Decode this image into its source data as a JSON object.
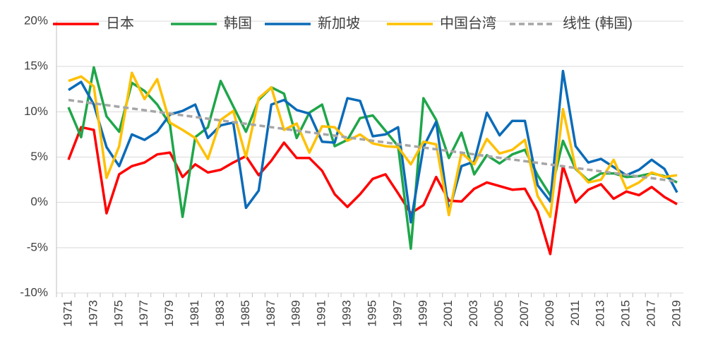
{
  "chart_data": {
    "type": "line",
    "categories": [
      "1971",
      null,
      "1973",
      null,
      "1975",
      null,
      "1977",
      null,
      "1979",
      null,
      "1981",
      null,
      "1983",
      null,
      "1985",
      null,
      "1987",
      null,
      "1989",
      null,
      "1991",
      null,
      "1993",
      null,
      "1995",
      null,
      "1997",
      null,
      "1999",
      null,
      "2001",
      null,
      "2003",
      null,
      "2005",
      null,
      "2007",
      null,
      "2009",
      null,
      "2011",
      null,
      "2013",
      null,
      "2015",
      null,
      "2017",
      null,
      "2019"
    ],
    "series": [
      {
        "name": "日本",
        "color": "#ff0000",
        "values": [
          4.7,
          8.3,
          8.0,
          -1.2,
          3.1,
          4.0,
          4.4,
          5.3,
          5.5,
          2.8,
          4.2,
          3.3,
          3.6,
          4.4,
          5.1,
          3.0,
          4.6,
          6.6,
          4.9,
          4.9,
          3.5,
          0.9,
          -0.5,
          0.9,
          2.6,
          3.1,
          1.0,
          -1.2,
          -0.3,
          2.8,
          0.2,
          0.1,
          1.5,
          2.2,
          1.8,
          1.4,
          1.5,
          -1.0,
          -5.7,
          4.0,
          0.0,
          1.4,
          2.0,
          0.4,
          1.2,
          0.8,
          1.7,
          0.6,
          -0.2
        ]
      },
      {
        "name": "韩国",
        "color": "#1fa64a",
        "values": [
          10.5,
          7.2,
          14.9,
          9.5,
          7.8,
          13.2,
          12.3,
          10.8,
          8.6,
          -1.6,
          7.2,
          8.3,
          13.4,
          10.6,
          7.8,
          11.3,
          12.7,
          12.0,
          7.1,
          9.9,
          10.8,
          6.2,
          6.9,
          9.3,
          9.6,
          7.9,
          6.2,
          -5.1,
          11.5,
          9.1,
          4.9,
          7.7,
          3.1,
          5.2,
          4.3,
          5.3,
          5.8,
          3.0,
          0.8,
          6.8,
          3.7,
          2.4,
          3.2,
          3.2,
          2.8,
          2.9,
          3.2,
          2.9,
          2.2
        ]
      },
      {
        "name": "新加坡",
        "color": "#0b6bb8",
        "values": [
          12.4,
          13.3,
          10.8,
          6.1,
          4.0,
          7.5,
          6.9,
          7.8,
          9.7,
          10.1,
          10.8,
          7.1,
          8.5,
          8.8,
          -0.6,
          1.3,
          10.8,
          11.3,
          10.2,
          9.8,
          6.7,
          6.6,
          11.5,
          11.2,
          7.3,
          7.5,
          8.3,
          -2.2,
          6.1,
          8.9,
          -1.0,
          4.0,
          4.5,
          9.9,
          7.4,
          9.0,
          9.0,
          1.9,
          0.1,
          14.5,
          6.2,
          4.4,
          4.8,
          3.9,
          3.0,
          3.6,
          4.7,
          3.7,
          1.1
        ]
      },
      {
        "name": "中国台湾",
        "color": "#ffc000",
        "values": [
          13.4,
          13.9,
          12.8,
          2.7,
          6.2,
          14.3,
          11.4,
          13.6,
          8.8,
          8.0,
          7.1,
          4.8,
          9.1,
          10.1,
          5.0,
          11.5,
          12.7,
          8.0,
          8.7,
          5.5,
          8.4,
          8.3,
          6.8,
          7.5,
          6.5,
          6.2,
          6.1,
          4.2,
          6.7,
          6.4,
          -1.4,
          5.5,
          4.2,
          7.0,
          5.4,
          5.8,
          6.9,
          0.7,
          -1.6,
          10.3,
          3.8,
          2.2,
          2.5,
          4.7,
          1.5,
          2.2,
          3.3,
          2.8,
          3.0
        ]
      }
    ],
    "trendline": {
      "name": "线性 (韩国)",
      "color": "#a6a6a6",
      "dashed": true,
      "values": [
        11.3,
        2.3
      ]
    },
    "ylim": [
      -10,
      20
    ],
    "yticks": [
      {
        "value": -10,
        "label": "-10%"
      },
      {
        "value": -5,
        "label": "-5%"
      },
      {
        "value": 0,
        "label": "0%"
      },
      {
        "value": 5,
        "label": "5%"
      },
      {
        "value": 10,
        "label": "10%"
      },
      {
        "value": 15,
        "label": "15%"
      },
      {
        "value": 20,
        "label": "20%"
      }
    ],
    "grid": true,
    "legend": "top"
  }
}
